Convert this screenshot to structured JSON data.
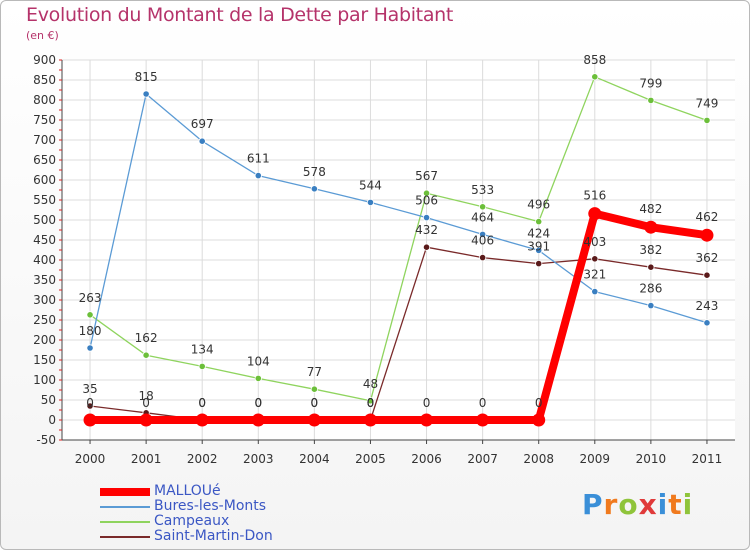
{
  "header": {
    "title": "Evolution du Montant de la Dette par Habitant",
    "unit": "(en €)"
  },
  "chart_data": {
    "type": "line",
    "title": "Evolution du Montant de la Dette par Habitant",
    "ylabel": "(en €)",
    "x": [
      "2000",
      "2001",
      "2002",
      "2003",
      "2004",
      "2005",
      "2006",
      "2007",
      "2008",
      "2009",
      "2010",
      "2011"
    ],
    "ylim": [
      -50,
      900
    ],
    "yticks": [
      -50,
      0,
      50,
      100,
      150,
      200,
      250,
      300,
      350,
      400,
      450,
      500,
      550,
      600,
      650,
      700,
      750,
      800,
      850,
      900
    ],
    "grid": true,
    "legend_position": "bottom-left",
    "series": [
      {
        "name": "MALLOUé",
        "color": "#ff0000",
        "values": [
          0,
          0,
          0,
          0,
          0,
          0,
          0,
          0,
          0,
          516,
          482,
          462
        ]
      },
      {
        "name": "Bures-les-Monts",
        "color": "#5b9bd5",
        "values": [
          180,
          815,
          697,
          611,
          578,
          544,
          506,
          464,
          424,
          321,
          286,
          243
        ]
      },
      {
        "name": "Campeaux",
        "color": "#8fd45e",
        "values": [
          263,
          162,
          134,
          104,
          77,
          48,
          567,
          533,
          496,
          858,
          799,
          749
        ]
      },
      {
        "name": "Saint-Martin-Don",
        "color": "#7a2a2a",
        "values": [
          35,
          18,
          0,
          0,
          0,
          0,
          432,
          406,
          391,
          403,
          382,
          362
        ]
      }
    ]
  },
  "logo": {
    "letters": [
      "P",
      "r",
      "o",
      "x",
      "i",
      "t",
      "i"
    ],
    "colors": [
      "#3a8fd8",
      "#f07a1e",
      "#8fc43a",
      "#e03a3a",
      "#3a8fd8",
      "#f07a1e",
      "#8fc43a"
    ]
  }
}
